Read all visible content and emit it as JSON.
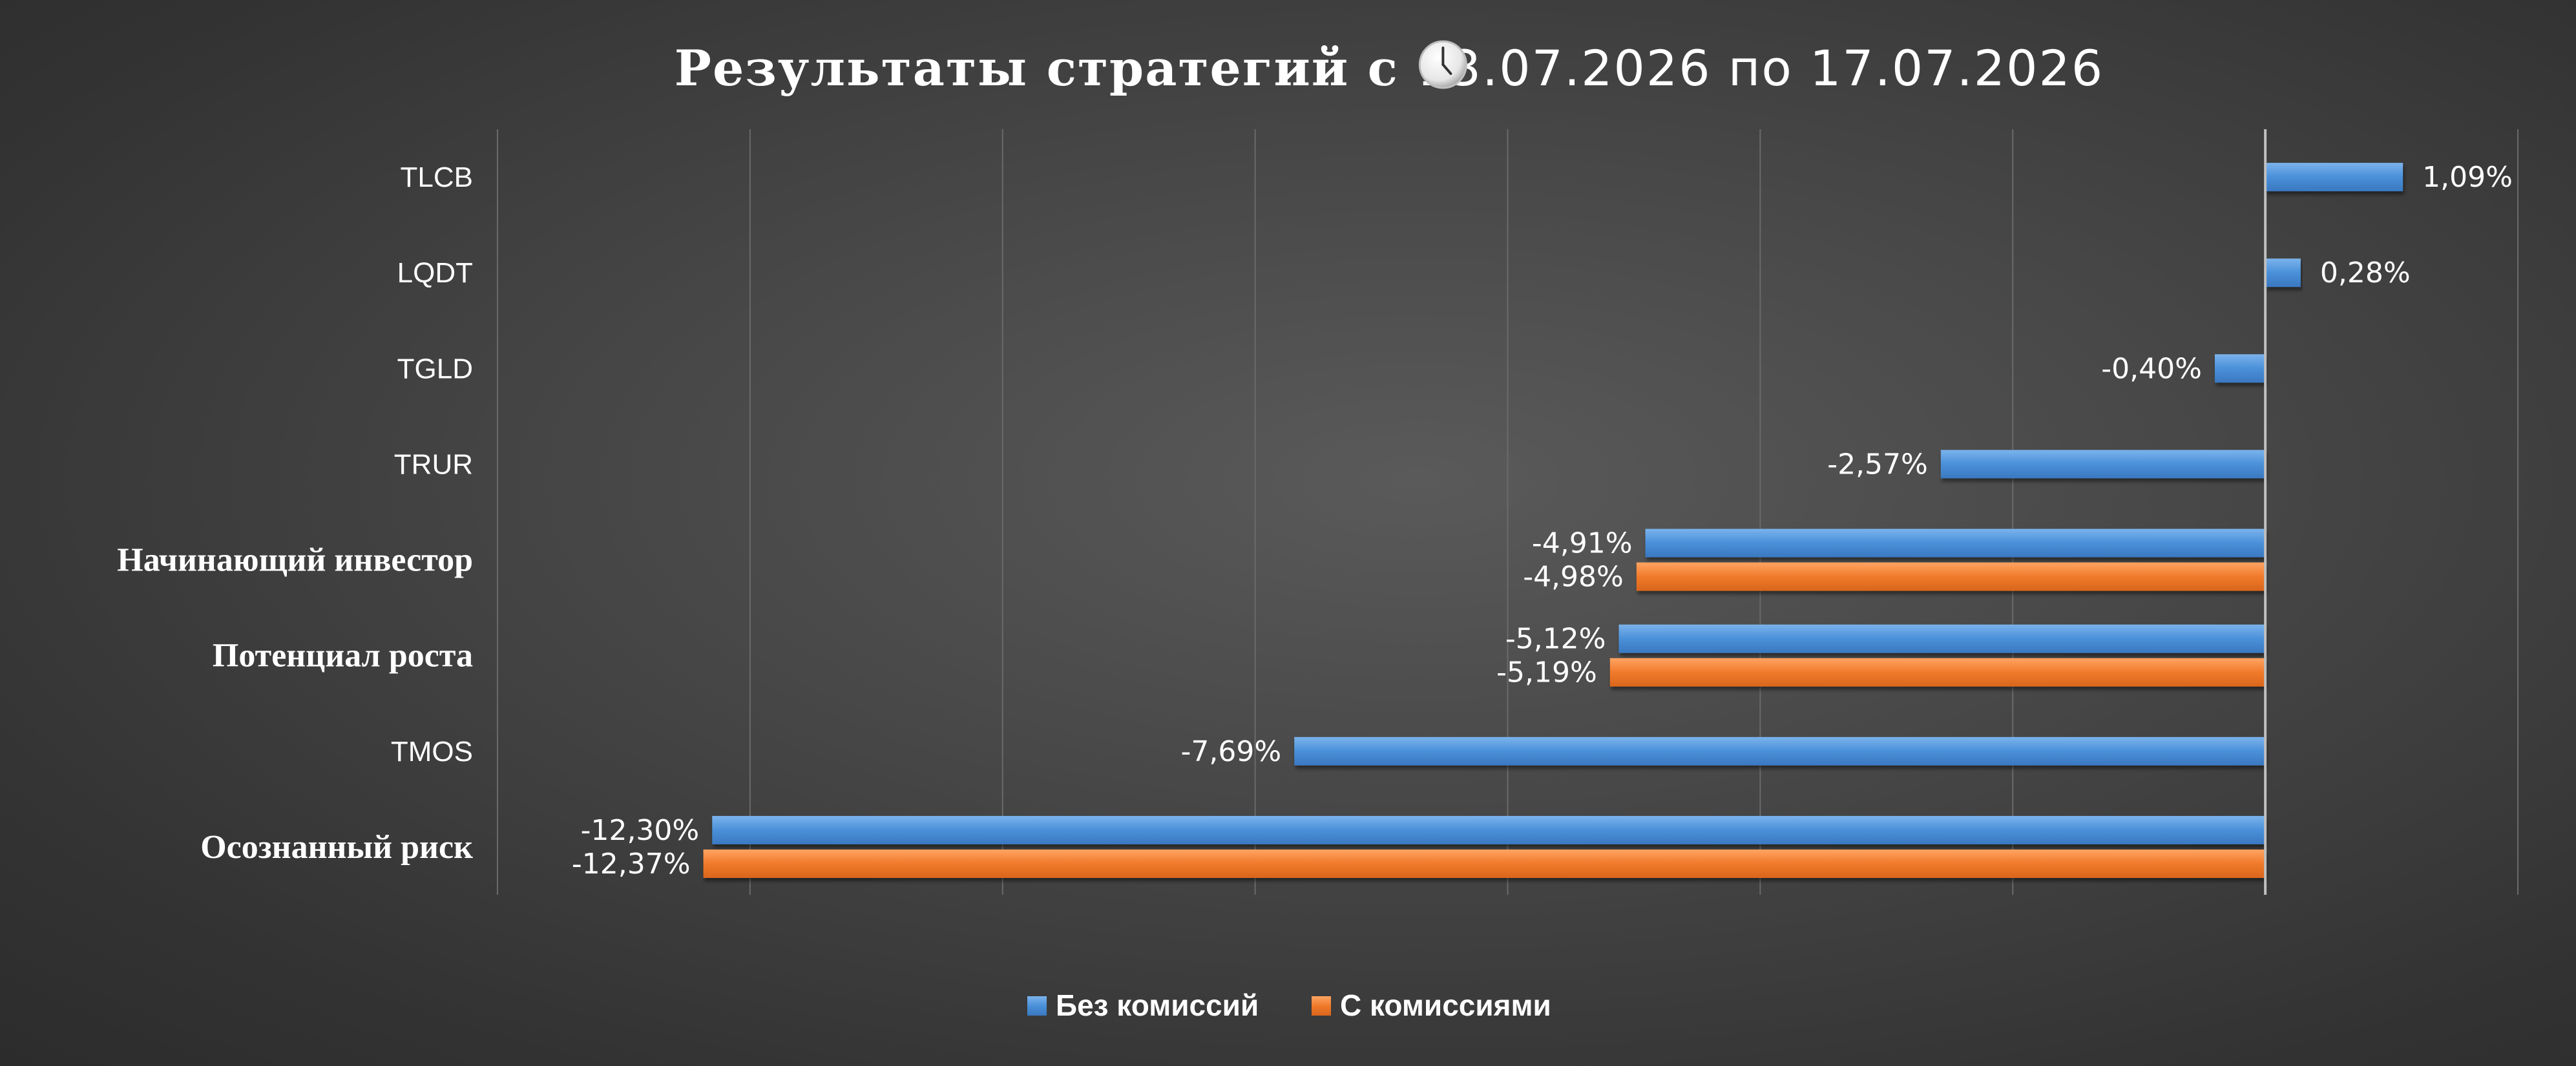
{
  "chart_data": {
    "type": "bar",
    "orientation": "horizontal",
    "title": "Результаты стратегий с",
    "title_date_range": "13.07.2026 по 17.07.2026",
    "title_icon": "clock-icon",
    "categories": [
      "TLCB",
      "LQDT",
      "TGLD",
      "TRUR",
      "Начинающий инвестор",
      "Потенциал роста",
      "TMOS",
      "Осознанный риск"
    ],
    "category_is_strategy": [
      false,
      false,
      false,
      false,
      true,
      true,
      false,
      true
    ],
    "series": [
      {
        "name": "Без комиссий",
        "color": "#4a90d9",
        "values": [
          1.09,
          0.28,
          -0.4,
          -2.57,
          -4.91,
          -5.12,
          -7.69,
          -12.3
        ],
        "labels": [
          "1,09%",
          "0,28%",
          "-0,40%",
          "-2,57%",
          "-4,91%",
          "-5,12%",
          "-7,69%",
          "-12,30%"
        ]
      },
      {
        "name": "С комиссиями",
        "color": "#f07a2b",
        "values": [
          null,
          null,
          null,
          null,
          -4.98,
          -5.19,
          null,
          -12.37
        ],
        "labels": [
          null,
          null,
          null,
          null,
          "-4,98%",
          "-5,19%",
          null,
          "-12,37%"
        ]
      }
    ],
    "xlim": [
      -14,
      2
    ],
    "grid": true,
    "legend_position": "bottom"
  }
}
